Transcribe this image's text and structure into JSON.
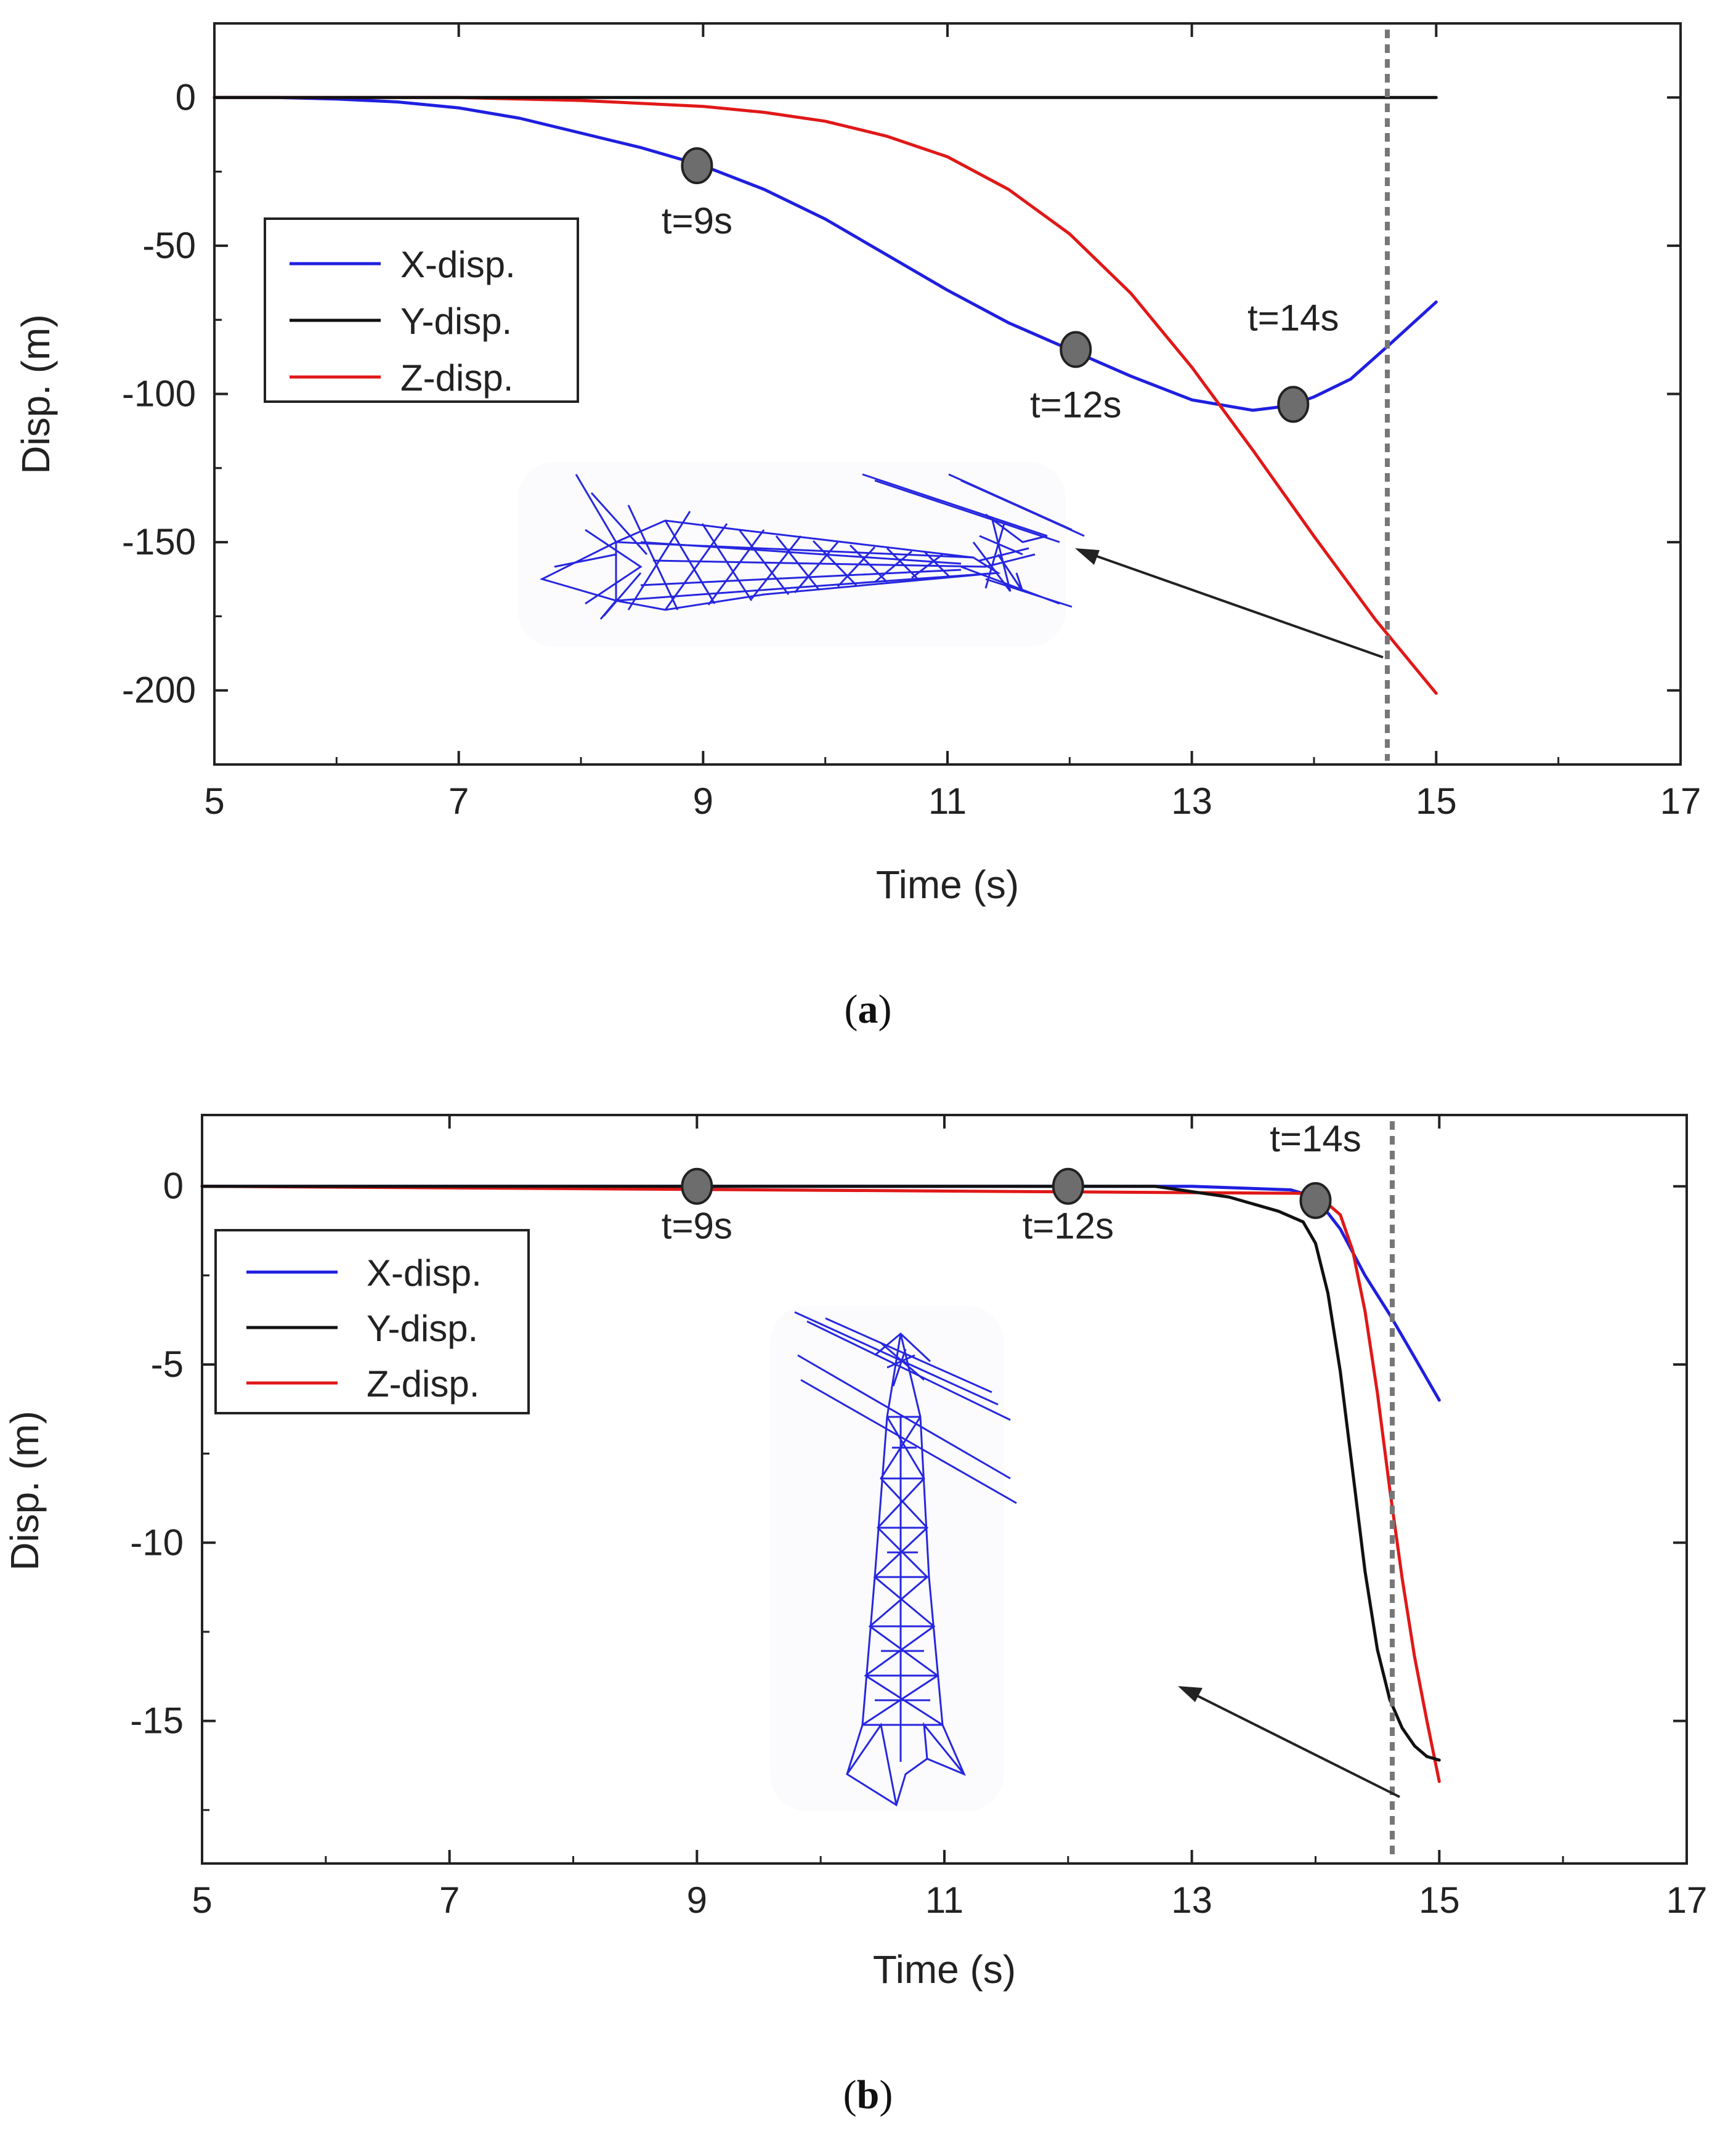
{
  "chart_data": [
    {
      "id": "a",
      "type": "line",
      "caption": "a",
      "xlabel": "Time (s)",
      "ylabel": "Disp. (m)",
      "xlim": [
        5,
        17
      ],
      "ylim": [
        -225,
        25
      ],
      "xticks": [
        5,
        7,
        9,
        11,
        13,
        15,
        17
      ],
      "yticks": [
        0,
        -50,
        -100,
        -150,
        -200
      ],
      "legend": {
        "position": "left-middle",
        "entries": [
          "X-disp.",
          "Y-disp.",
          "Z-disp."
        ]
      },
      "series": [
        {
          "name": "X-disp.",
          "color": "#1f1fe0",
          "x": [
            5,
            5.5,
            6,
            6.5,
            7,
            7.5,
            8,
            8.5,
            9,
            9.5,
            10,
            10.5,
            11,
            11.5,
            12,
            12.5,
            13,
            13.5,
            13.8,
            14,
            14.3,
            14.6,
            15
          ],
          "y": [
            0,
            0,
            -0.5,
            -1.5,
            -3.5,
            -7,
            -12,
            -17,
            -23,
            -31,
            -41,
            -53,
            -65,
            -76,
            -85,
            -94,
            -102,
            -105.5,
            -104,
            -101,
            -95,
            -84,
            -69
          ]
        },
        {
          "name": "Y-disp.",
          "color": "#111111",
          "x": [
            5,
            15
          ],
          "y": [
            0,
            0
          ]
        },
        {
          "name": "Z-disp.",
          "color": "#e01818",
          "x": [
            5,
            7,
            8,
            9,
            9.5,
            10,
            10.5,
            11,
            11.5,
            12,
            12.5,
            13,
            13.5,
            14,
            14.5,
            15
          ],
          "y": [
            0,
            0,
            -1,
            -3,
            -5,
            -8,
            -13,
            -20,
            -31,
            -46,
            -66,
            -91,
            -119,
            -148,
            -176,
            -201
          ]
        }
      ],
      "markers": [
        {
          "label": "t=9s",
          "x": 8.95,
          "y": -23
        },
        {
          "label": "t=12s",
          "x": 12.05,
          "y": -85
        },
        {
          "label": "t=14s",
          "x": 13.83,
          "y": -103.5
        }
      ],
      "vline_x": 14.6
    },
    {
      "id": "b",
      "type": "line",
      "caption": "b",
      "xlabel": "Time (s)",
      "ylabel": "Disp. (m)",
      "xlim": [
        5,
        17
      ],
      "ylim": [
        -19,
        2
      ],
      "xticks": [
        5,
        7,
        9,
        11,
        13,
        15,
        17
      ],
      "yticks": [
        0,
        -5,
        -10,
        -15
      ],
      "legend": {
        "position": "left-upper",
        "entries": [
          "X-disp.",
          "Y-disp.",
          "Z-disp."
        ]
      },
      "series": [
        {
          "name": "X-disp.",
          "color": "#1f1fe0",
          "x": [
            5,
            13,
            13.8,
            14,
            14.2,
            14.4,
            14.6,
            14.8,
            15
          ],
          "y": [
            0,
            0,
            -0.1,
            -0.3,
            -1.2,
            -2.5,
            -3.6,
            -4.8,
            -6
          ]
        },
        {
          "name": "Y-disp.",
          "color": "#111111",
          "x": [
            5,
            12.7,
            13.3,
            13.7,
            13.9,
            14.0,
            14.1,
            14.2,
            14.3,
            14.4,
            14.5,
            14.6,
            14.7,
            14.8,
            14.9,
            15
          ],
          "y": [
            0,
            0,
            -0.3,
            -0.7,
            -1.0,
            -1.6,
            -3.0,
            -5.2,
            -8.0,
            -10.8,
            -13.0,
            -14.4,
            -15.2,
            -15.7,
            -16.0,
            -16.1
          ]
        },
        {
          "name": "Z-disp.",
          "color": "#e01818",
          "x": [
            5,
            14,
            14.2,
            14.3,
            14.4,
            14.5,
            14.6,
            14.7,
            14.8,
            14.9,
            15
          ],
          "y": [
            0,
            -0.2,
            -0.8,
            -1.8,
            -3.5,
            -5.8,
            -8.5,
            -11.0,
            -13.2,
            -15.0,
            -16.7
          ]
        }
      ],
      "markers": [
        {
          "label": "t=9s",
          "x": 9,
          "y": 0
        },
        {
          "label": "t=12s",
          "x": 12,
          "y": 0
        },
        {
          "label": "t=14s",
          "x": 14,
          "y": -0.4
        }
      ],
      "vline_x": 14.62
    }
  ]
}
